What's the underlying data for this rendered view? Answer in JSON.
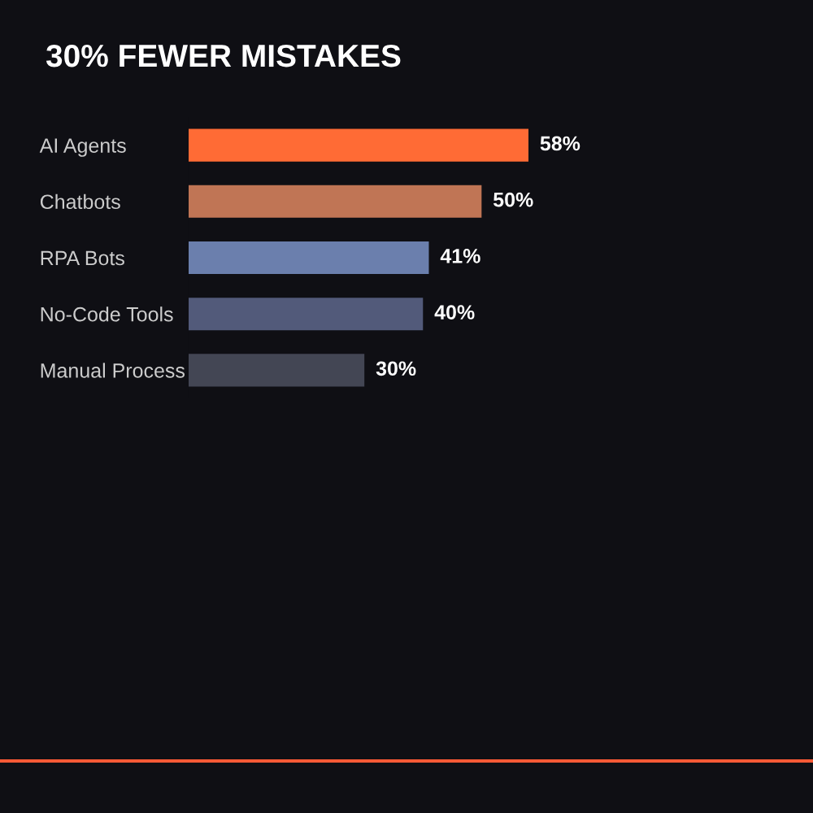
{
  "chart_data": {
    "type": "bar",
    "orientation": "horizontal",
    "title": "30% FEWER MISTAKES",
    "categories": [
      "AI Agents",
      "Chatbots",
      "RPA Bots",
      "No-Code Tools",
      "Manual Process"
    ],
    "values": [
      58,
      50,
      41,
      40,
      30
    ],
    "colors": [
      "#ff6b35",
      "#c07555",
      "#6b7fad",
      "#525a7a",
      "#434654"
    ],
    "value_labels": [
      "58%",
      "50%",
      "41%",
      "40%",
      "30%"
    ],
    "grid": false,
    "legend": false
  }
}
